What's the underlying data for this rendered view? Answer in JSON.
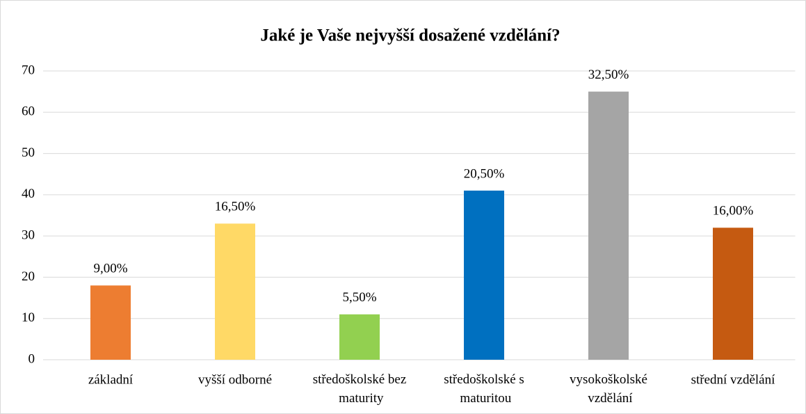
{
  "chart_data": {
    "type": "bar",
    "title": "Jaké je Vaše nejvyšší dosažené vzdělání?",
    "categories": [
      "základní",
      "vyšší odborné",
      "středoškolské bez maturity",
      "středoškolské s maturitou",
      "vysokoškolské vzdělání",
      "střední vzdělání"
    ],
    "values": [
      18,
      33,
      11,
      41,
      65,
      32
    ],
    "value_labels": [
      "9,00%",
      "16,50%",
      "5,50%",
      "20,50%",
      "32,50%",
      "16,00%"
    ],
    "colors": [
      "#ed7d31",
      "#ffd966",
      "#92d050",
      "#0070c0",
      "#a5a5a5",
      "#c55a11"
    ],
    "ylim": [
      0,
      70
    ],
    "yticks": [
      0,
      10,
      20,
      30,
      40,
      50,
      60,
      70
    ],
    "grid": true
  }
}
